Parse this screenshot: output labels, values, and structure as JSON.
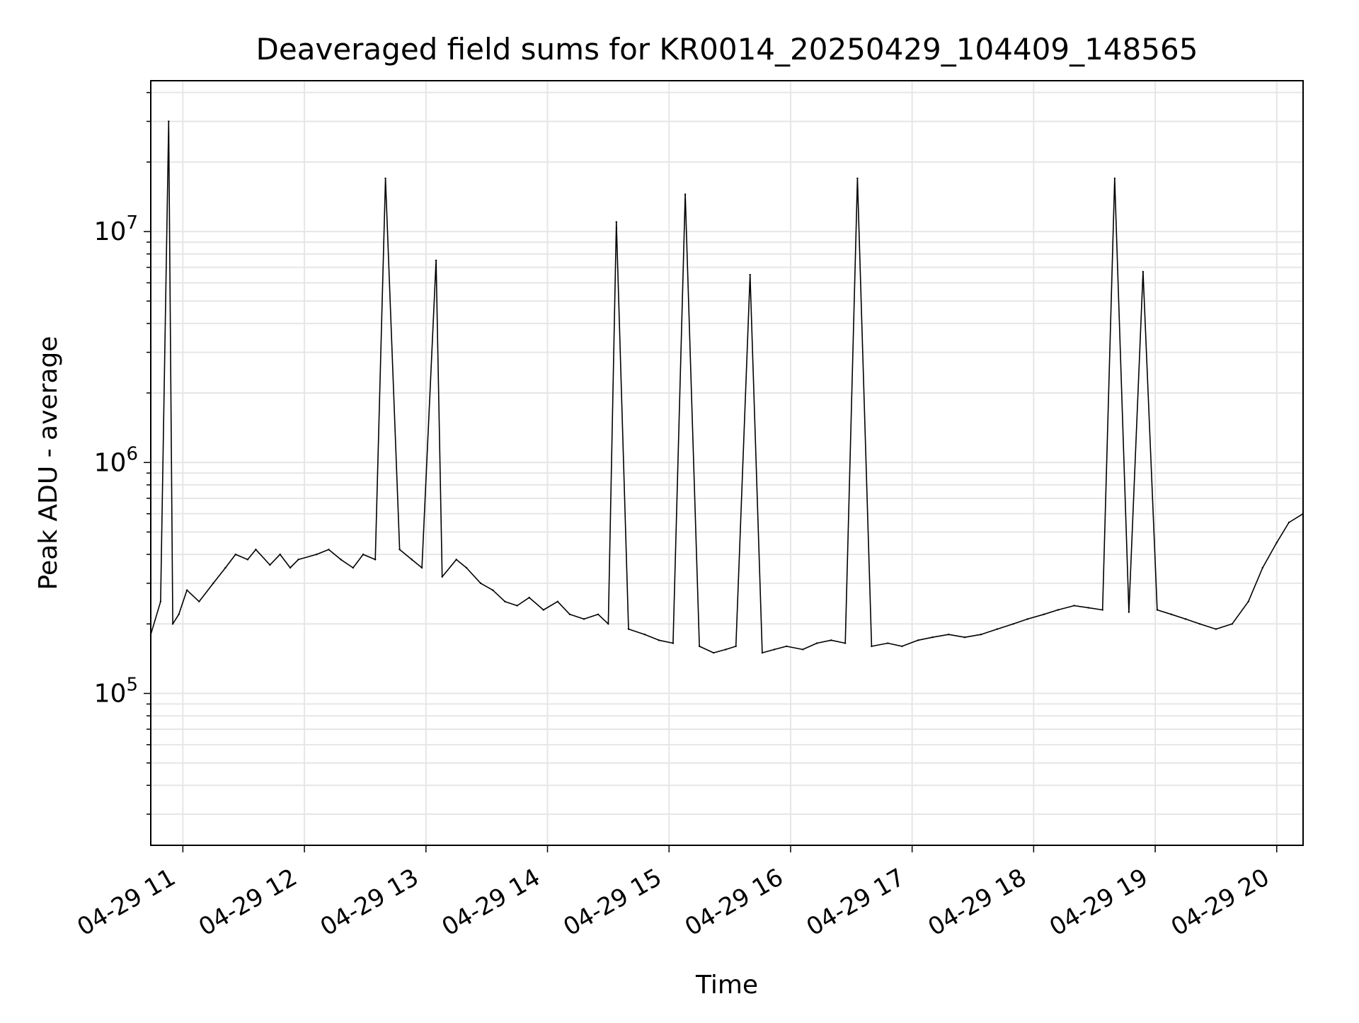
{
  "chart_data": {
    "type": "line",
    "title": "Deaveraged field sums for KR0014_20250429_104409_148565",
    "xlabel": "Time",
    "ylabel": "Peak ADU - average",
    "yscale": "log",
    "ylim": [
      22000,
      45000000
    ],
    "xlim": [
      "2025-04-29T10:44:09",
      "2025-04-29T20:13:00"
    ],
    "grid": true,
    "legend": "none",
    "line_color": "#000000",
    "grid_color": "#e6e6e6",
    "x_tick_labels": [
      "04-29 11",
      "04-29 12",
      "04-29 13",
      "04-29 14",
      "04-29 15",
      "04-29 16",
      "04-29 17",
      "04-29 18",
      "04-29 19",
      "04-29 20"
    ],
    "y_tick_labels": [
      {
        "base": "10",
        "exp": "5",
        "value": 100000
      },
      {
        "base": "10",
        "exp": "6",
        "value": 1000000
      },
      {
        "base": "10",
        "exp": "7",
        "value": 10000000
      }
    ],
    "series": [
      {
        "x": [
          "2025-04-29T10:44:09",
          "2025-04-29T10:49:00",
          "2025-04-29T10:53:00",
          "2025-04-29T10:55:00",
          "2025-04-29T10:58:00",
          "2025-04-29T11:02:00",
          "2025-04-29T11:08:00",
          "2025-04-29T11:15:00",
          "2025-04-29T11:21:00",
          "2025-04-29T11:26:00",
          "2025-04-29T11:32:00",
          "2025-04-29T11:36:00",
          "2025-04-29T11:43:00",
          "2025-04-29T11:48:00",
          "2025-04-29T11:53:00",
          "2025-04-29T11:57:00",
          "2025-04-29T12:06:00",
          "2025-04-29T12:12:00",
          "2025-04-29T12:18:00",
          "2025-04-29T12:24:00",
          "2025-04-29T12:29:00",
          "2025-04-29T12:35:00",
          "2025-04-29T12:40:00",
          "2025-04-29T12:47:00",
          "2025-04-29T12:53:00",
          "2025-04-29T12:58:00",
          "2025-04-29T13:05:00",
          "2025-04-29T13:08:00",
          "2025-04-29T13:15:00",
          "2025-04-29T13:20:00",
          "2025-04-29T13:27:00",
          "2025-04-29T13:33:00",
          "2025-04-29T13:39:00",
          "2025-04-29T13:45:00",
          "2025-04-29T13:51:00",
          "2025-04-29T13:58:00",
          "2025-04-29T14:05:00",
          "2025-04-29T14:11:00",
          "2025-04-29T14:18:00",
          "2025-04-29T14:25:00",
          "2025-04-29T14:30:00",
          "2025-04-29T14:34:00",
          "2025-04-29T14:40:00",
          "2025-04-29T14:48:00",
          "2025-04-29T14:55:00",
          "2025-04-29T15:02:00",
          "2025-04-29T15:08:00",
          "2025-04-29T15:15:00",
          "2025-04-29T15:22:00",
          "2025-04-29T15:28:00",
          "2025-04-29T15:33:00",
          "2025-04-29T15:40:00",
          "2025-04-29T15:46:00",
          "2025-04-29T15:52:00",
          "2025-04-29T15:58:00",
          "2025-04-29T16:06:00",
          "2025-04-29T16:13:00",
          "2025-04-29T16:20:00",
          "2025-04-29T16:27:00",
          "2025-04-29T16:33:00",
          "2025-04-29T16:40:00",
          "2025-04-29T16:48:00",
          "2025-04-29T16:55:00",
          "2025-04-29T17:03:00",
          "2025-04-29T17:10:00",
          "2025-04-29T17:18:00",
          "2025-04-29T17:26:00",
          "2025-04-29T17:34:00",
          "2025-04-29T17:42:00",
          "2025-04-29T17:50:00",
          "2025-04-29T17:57:00",
          "2025-04-29T18:05:00",
          "2025-04-29T18:12:00",
          "2025-04-29T18:20:00",
          "2025-04-29T18:27:00",
          "2025-04-29T18:34:00",
          "2025-04-29T18:40:00",
          "2025-04-29T18:47:00",
          "2025-04-29T18:54:00",
          "2025-04-29T19:01:00",
          "2025-04-29T19:08:00",
          "2025-04-29T19:15:00",
          "2025-04-29T19:22:00",
          "2025-04-29T19:30:00",
          "2025-04-29T19:38:00",
          "2025-04-29T19:46:00",
          "2025-04-29T19:53:00",
          "2025-04-29T20:00:00",
          "2025-04-29T20:06:00",
          "2025-04-29T20:13:00"
        ],
        "y": [
          180000,
          250000,
          30000000,
          200000,
          220000,
          280000,
          250000,
          300000,
          350000,
          400000,
          380000,
          420000,
          360000,
          400000,
          350000,
          380000,
          400000,
          420000,
          380000,
          350000,
          400000,
          380000,
          17000000,
          420000,
          380000,
          350000,
          7500000,
          320000,
          380000,
          350000,
          300000,
          280000,
          250000,
          240000,
          260000,
          230000,
          250000,
          220000,
          210000,
          220000,
          200000,
          11000000,
          190000,
          180000,
          170000,
          165000,
          14500000,
          160000,
          150000,
          155000,
          160000,
          6500000,
          150000,
          155000,
          160000,
          155000,
          165000,
          170000,
          165000,
          17000000,
          160000,
          165000,
          160000,
          170000,
          175000,
          180000,
          175000,
          180000,
          190000,
          200000,
          210000,
          220000,
          230000,
          240000,
          235000,
          230000,
          17000000,
          225000,
          6700000,
          230000,
          220000,
          210000,
          200000,
          190000,
          200000,
          250000,
          350000,
          450000,
          550000,
          600000
        ]
      }
    ]
  }
}
